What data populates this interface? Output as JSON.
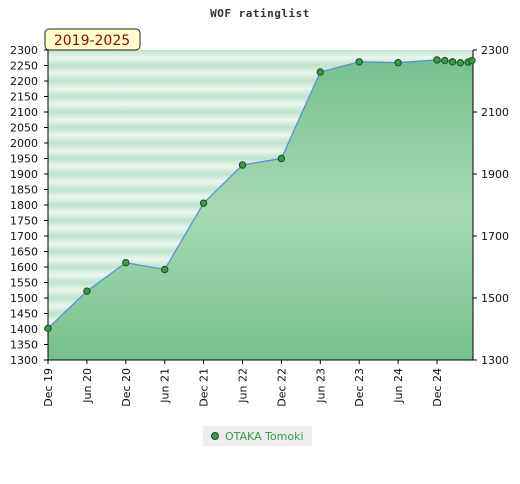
{
  "chart_data": {
    "type": "area",
    "title": "WOF ratinglist",
    "period_label": "2019-2025",
    "xlabel": "",
    "ylabel": "",
    "ylim": [
      1300,
      2300
    ],
    "y_ticks_left": [
      1300,
      1350,
      1400,
      1450,
      1500,
      1550,
      1600,
      1650,
      1700,
      1750,
      1800,
      1850,
      1900,
      1950,
      2000,
      2050,
      2100,
      2150,
      2200,
      2250,
      2300
    ],
    "y_ticks_right": [
      1300,
      1500,
      1700,
      1900,
      2100,
      2300
    ],
    "x_ticks": [
      "Dec 19",
      "Jun 20",
      "Dec 20",
      "Jun 21",
      "Dec 21",
      "Jun 22",
      "Dec 22",
      "Jun 23",
      "Dec 23",
      "Jun 24",
      "Dec 24"
    ],
    "grid": true,
    "legend_position": "bottom",
    "series": [
      {
        "name": "OTAKA Tomoki",
        "color": "#3a9a4a",
        "points": [
          {
            "x": 0,
            "y": 1402
          },
          {
            "x": 1,
            "y": 1522
          },
          {
            "x": 2,
            "y": 1614
          },
          {
            "x": 3,
            "y": 1592
          },
          {
            "x": 4,
            "y": 1806
          },
          {
            "x": 5,
            "y": 1929
          },
          {
            "x": 6,
            "y": 1950
          },
          {
            "x": 7,
            "y": 2229
          },
          {
            "x": 8,
            "y": 2262
          },
          {
            "x": 9,
            "y": 2259
          },
          {
            "x": 10,
            "y": 2268
          },
          {
            "x": 10.2,
            "y": 2266
          },
          {
            "x": 10.4,
            "y": 2262
          },
          {
            "x": 10.6,
            "y": 2259
          },
          {
            "x": 10.8,
            "y": 2261
          },
          {
            "x": 10.95,
            "y": 2266
          }
        ]
      }
    ]
  }
}
